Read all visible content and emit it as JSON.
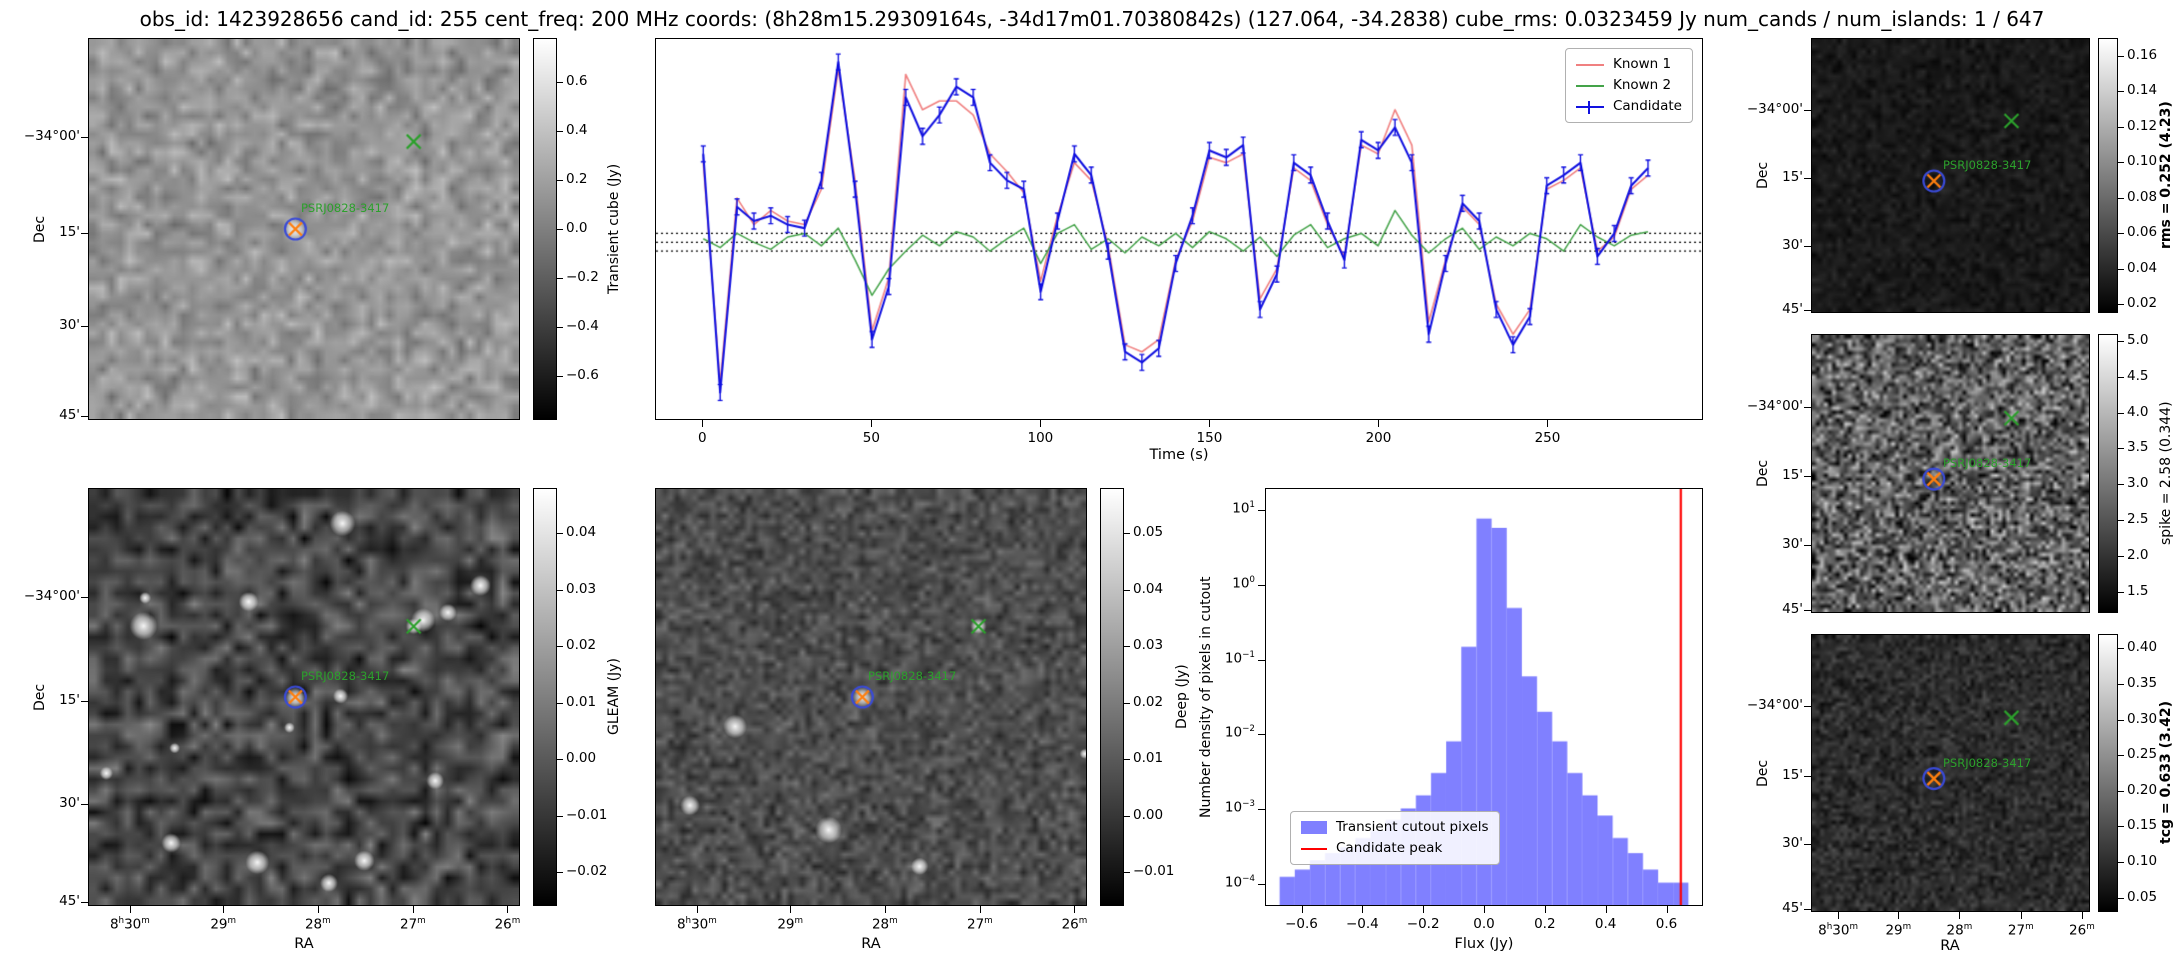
{
  "title": "obs_id: 1423928656 cand_id: 255 cent_freq: 200 MHz coords: (8h28m15.29309164s, -34d17m01.70380842s) (127.064, -34.2838) cube_rms: 0.0323459 Jy num_cands / num_islands: 1 / 647",
  "source_label": "PSRJ0828-3417",
  "colors": {
    "known1": "#f08080",
    "known2": "#44a349",
    "candidate": "#1212e0",
    "histogram_bar": "#8080ff",
    "candidate_peak_line": "#ff0000",
    "marker_green": "#2ca02c",
    "marker_orange": "#ff7f0e",
    "marker_circle_blue": "#3a4bd8",
    "threshold_line": "#000000"
  },
  "axes": {
    "dec_label": "Dec",
    "ra_label": "RA",
    "dec_ticks": [
      "−34°00'",
      "15'",
      "30'",
      "45'"
    ],
    "ra_ticks": [
      "8h30m",
      "29m",
      "28m",
      "27m",
      "26m"
    ]
  },
  "colorbars": {
    "transient": {
      "label": "Transient cube (Jy)",
      "ticks": [
        0.6,
        0.4,
        0.2,
        0.0,
        -0.2,
        -0.4,
        -0.6
      ],
      "range": [
        -0.78,
        0.78
      ]
    },
    "gleam": {
      "label": "GLEAM (Jy)",
      "ticks": [
        0.04,
        0.03,
        0.02,
        0.01,
        0.0,
        -0.01,
        -0.02
      ],
      "range": [
        -0.026,
        0.048
      ]
    },
    "deep": {
      "label": "Deep (Jy)",
      "ticks": [
        0.05,
        0.04,
        0.03,
        0.02,
        0.01,
        0.0,
        -0.01
      ],
      "range": [
        -0.016,
        0.058
      ]
    },
    "rms": {
      "label": "rms = 0.252 (4.23)",
      "ticks": [
        0.16,
        0.14,
        0.12,
        0.1,
        0.08,
        0.06,
        0.04,
        0.02
      ],
      "range": [
        0.015,
        0.17
      ],
      "bold": true
    },
    "spike": {
      "label": "spike = 2.58 (0.344)",
      "ticks": [
        5.0,
        4.5,
        4.0,
        3.5,
        3.0,
        2.5,
        2.0,
        1.5
      ],
      "range": [
        1.2,
        5.1
      ],
      "bold": false
    },
    "tcg": {
      "label": "tcg = 0.633 (3.42)",
      "ticks": [
        0.4,
        0.35,
        0.3,
        0.25,
        0.2,
        0.15,
        0.1,
        0.05
      ],
      "range": [
        0.03,
        0.42
      ],
      "bold": true
    }
  },
  "chart_data": [
    {
      "type": "line",
      "title": "",
      "xlabel": "Time (s)",
      "ylabel": "",
      "xlim": [
        -14,
        296
      ],
      "ylim": [
        -1.0,
        1.15
      ],
      "xticks": [
        0,
        50,
        100,
        150,
        200,
        250
      ],
      "threshold_lines": [
        0.05,
        0.0,
        -0.05
      ],
      "legend_position": "upper right",
      "x": [
        0,
        5,
        10,
        15,
        20,
        25,
        30,
        35,
        40,
        45,
        50,
        55,
        60,
        65,
        70,
        75,
        80,
        85,
        90,
        95,
        100,
        105,
        110,
        115,
        120,
        125,
        130,
        135,
        140,
        145,
        150,
        155,
        160,
        165,
        170,
        175,
        180,
        185,
        190,
        195,
        200,
        205,
        210,
        215,
        220,
        225,
        230,
        235,
        240,
        245,
        250,
        255,
        260,
        265,
        270,
        275,
        280
      ],
      "series": [
        {
          "name": "Known 1",
          "values": [
            0.45,
            -0.8,
            0.25,
            0.1,
            0.18,
            0.12,
            0.1,
            0.3,
            0.98,
            0.35,
            -0.5,
            -0.2,
            0.95,
            0.75,
            0.8,
            0.8,
            0.72,
            0.5,
            0.4,
            0.28,
            -0.22,
            0.15,
            0.45,
            0.35,
            -0.02,
            -0.58,
            -0.62,
            -0.55,
            -0.1,
            0.12,
            0.48,
            0.45,
            0.5,
            -0.32,
            -0.15,
            0.42,
            0.35,
            0.1,
            -0.08,
            0.55,
            0.5,
            0.75,
            0.55,
            -0.45,
            -0.1,
            0.2,
            0.1,
            -0.35,
            -0.52,
            -0.38,
            0.3,
            0.35,
            0.42,
            -0.05,
            0.03,
            0.3,
            0.38
          ]
        },
        {
          "name": "Known 2",
          "values": [
            0.02,
            -0.03,
            0.05,
            0.0,
            -0.04,
            0.03,
            0.05,
            -0.02,
            0.08,
            -0.1,
            -0.3,
            -0.15,
            -0.05,
            0.04,
            -0.02,
            0.06,
            0.03,
            -0.05,
            0.02,
            0.08,
            -0.12,
            0.05,
            0.1,
            -0.04,
            0.02,
            -0.06,
            0.03,
            -0.02,
            0.05,
            -0.03,
            0.06,
            0.02,
            -0.05,
            0.03,
            -0.08,
            0.04,
            0.1,
            -0.03,
            0.02,
            0.05,
            -0.02,
            0.18,
            0.04,
            -0.06,
            0.02,
            0.08,
            -0.04,
            0.03,
            -0.02,
            0.05,
            0.02,
            -0.05,
            0.1,
            0.03,
            -0.02,
            0.04,
            0.06
          ]
        },
        {
          "name": "Candidate",
          "error": 0.045,
          "values": [
            0.5,
            -0.85,
            0.2,
            0.12,
            0.15,
            0.1,
            0.08,
            0.35,
            1.02,
            0.3,
            -0.55,
            -0.25,
            0.82,
            0.6,
            0.72,
            0.88,
            0.82,
            0.45,
            0.35,
            0.3,
            -0.28,
            0.12,
            0.5,
            0.38,
            -0.05,
            -0.62,
            -0.68,
            -0.6,
            -0.12,
            0.15,
            0.52,
            0.48,
            0.55,
            -0.38,
            -0.18,
            0.45,
            0.38,
            0.12,
            -0.1,
            0.58,
            0.52,
            0.65,
            0.45,
            -0.52,
            -0.12,
            0.22,
            0.12,
            -0.38,
            -0.58,
            -0.42,
            0.32,
            0.38,
            0.45,
            -0.08,
            0.05,
            0.32,
            0.42
          ]
        }
      ]
    },
    {
      "type": "bar",
      "title": "",
      "xlabel": "Flux (Jy)",
      "ylabel": "Number density of pixels in cutout",
      "yscale": "log",
      "xlim": [
        -0.72,
        0.72
      ],
      "ylim": [
        5e-05,
        20
      ],
      "xticks": [
        -0.6,
        -0.4,
        -0.2,
        0.0,
        0.2,
        0.4,
        0.6
      ],
      "ytick_exponents": [
        1,
        0,
        -1,
        -2,
        -3,
        -4
      ],
      "bin_start": -0.675,
      "bin_width": 0.05,
      "values": [
        0.00012,
        0.00015,
        0.0002,
        0.00025,
        0.0003,
        0.0004,
        0.0005,
        0.0007,
        0.001,
        0.0015,
        0.003,
        0.008,
        0.15,
        8.0,
        6.0,
        0.5,
        0.06,
        0.02,
        0.008,
        0.003,
        0.0015,
        0.0008,
        0.0004,
        0.00025,
        0.00015,
        0.0001,
        0.0001
      ],
      "candidate_peak": 0.65,
      "legend": [
        "Transient cutout pixels",
        "Candidate peak"
      ]
    }
  ]
}
